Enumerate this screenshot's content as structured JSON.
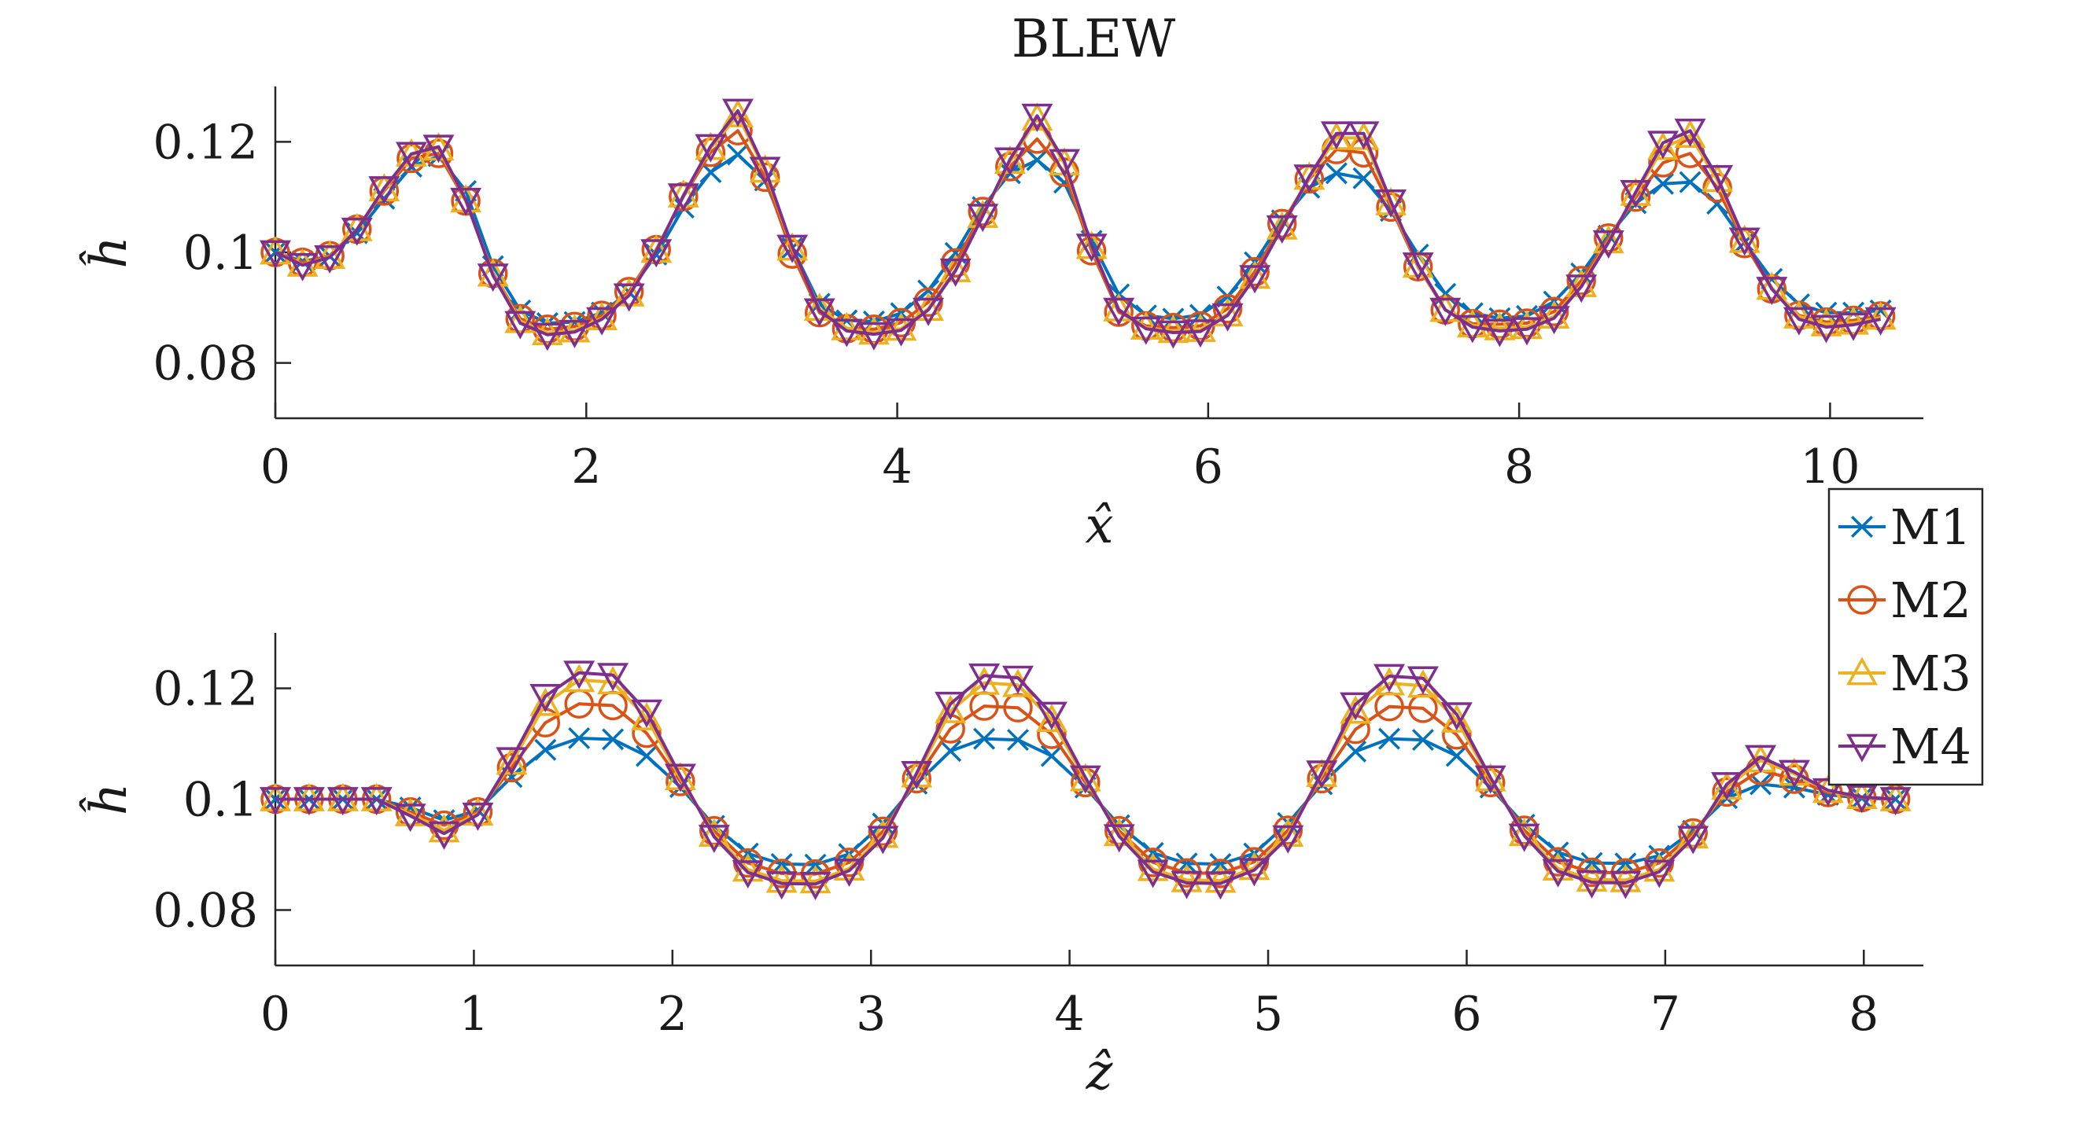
{
  "figure_title": "BLEW",
  "colors": {
    "M1": "#0072BD",
    "M2": "#D95319",
    "M3": "#EDB120",
    "M4": "#7E2F8E",
    "axis": "#262626",
    "background": "#ffffff"
  },
  "legend": {
    "placement": "right, between the two panels",
    "entries": [
      {
        "label": "M1",
        "marker": "x",
        "color": "#0072BD"
      },
      {
        "label": "M2",
        "marker": "circle",
        "color": "#D95319"
      },
      {
        "label": "M3",
        "marker": "triangle-up",
        "color": "#EDB120"
      },
      {
        "label": "M4",
        "marker": "triangle-down",
        "color": "#7E2F8E"
      }
    ]
  },
  "chart_data": [
    {
      "type": "line",
      "title": "BLEW",
      "xlabel": "x̂",
      "ylabel": "ĥ",
      "xlim": [
        0,
        10.6
      ],
      "ylim": [
        0.07,
        0.13
      ],
      "xticks": [
        0,
        2,
        4,
        6,
        8,
        10
      ],
      "yticks": [
        0.08,
        0.1,
        0.12
      ],
      "ytick_labels": [
        "0.08",
        "0.1",
        "0.12"
      ],
      "grid": false,
      "x": [
        0,
        0.175,
        0.35,
        0.525,
        0.7,
        0.875,
        1.05,
        1.225,
        1.4,
        1.575,
        1.75,
        1.925,
        2.1,
        2.275,
        2.45,
        2.625,
        2.8,
        2.975,
        3.15,
        3.325,
        3.5,
        3.675,
        3.85,
        4.025,
        4.2,
        4.375,
        4.55,
        4.725,
        4.9,
        5.075,
        5.25,
        5.425,
        5.6,
        5.775,
        5.95,
        6.125,
        6.3,
        6.475,
        6.65,
        6.825,
        7,
        7.175,
        7.35,
        7.525,
        7.7,
        7.875,
        8.05,
        8.225,
        8.4,
        8.575,
        8.75,
        8.925,
        9.1,
        9.275,
        9.45,
        9.625,
        9.8,
        9.975,
        10.15,
        10.325
      ],
      "series": [
        {
          "name": "M1",
          "marker": "x",
          "values": [
            0.1,
            0.0984,
            0.0993,
            0.1035,
            0.1097,
            0.1155,
            0.1174,
            0.1111,
            0.0975,
            0.0895,
            0.0872,
            0.0874,
            0.0891,
            0.0928,
            0.0996,
            0.1081,
            0.1145,
            0.1177,
            0.113,
            0.1008,
            0.0907,
            0.0877,
            0.0875,
            0.089,
            0.0931,
            0.0999,
            0.1082,
            0.1143,
            0.1167,
            0.1126,
            0.1021,
            0.0924,
            0.0886,
            0.088,
            0.0887,
            0.092,
            0.0982,
            0.1058,
            0.1117,
            0.1143,
            0.1134,
            0.1075,
            0.0996,
            0.0925,
            0.089,
            0.0881,
            0.0885,
            0.0911,
            0.0962,
            0.103,
            0.1089,
            0.1124,
            0.1127,
            0.1088,
            0.1018,
            0.0952,
            0.0906,
            0.0891,
            0.0891,
            0.0895
          ]
        },
        {
          "name": "M2",
          "marker": "circle",
          "values": [
            0.1,
            0.0982,
            0.0994,
            0.1042,
            0.1111,
            0.117,
            0.1179,
            0.1093,
            0.0962,
            0.088,
            0.0861,
            0.0866,
            0.0886,
            0.0929,
            0.1005,
            0.1101,
            0.1181,
            0.122,
            0.1136,
            0.0997,
            0.0891,
            0.0862,
            0.0861,
            0.0873,
            0.091,
            0.0981,
            0.1074,
            0.1155,
            0.1205,
            0.1145,
            0.1003,
            0.0892,
            0.0867,
            0.0864,
            0.0867,
            0.0898,
            0.0965,
            0.1052,
            0.1133,
            0.1186,
            0.118,
            0.1082,
            0.0974,
            0.0896,
            0.0871,
            0.087,
            0.0872,
            0.0893,
            0.0949,
            0.1026,
            0.11,
            0.1162,
            0.1179,
            0.1117,
            0.1016,
            0.0934,
            0.0886,
            0.0874,
            0.0877,
            0.0885
          ]
        },
        {
          "name": "M3",
          "marker": "triangle-up",
          "values": [
            0.1,
            0.0978,
            0.0992,
            0.1042,
            0.1114,
            0.1177,
            0.1188,
            0.1094,
            0.096,
            0.0876,
            0.0854,
            0.0859,
            0.0881,
            0.0924,
            0.1003,
            0.1103,
            0.1189,
            0.1248,
            0.1148,
            0.1007,
            0.0898,
            0.0863,
            0.0855,
            0.0862,
            0.0898,
            0.0968,
            0.1066,
            0.1164,
            0.1242,
            0.1161,
            0.101,
            0.0897,
            0.0864,
            0.0858,
            0.086,
            0.0888,
            0.0956,
            0.1045,
            0.1135,
            0.1207,
            0.1207,
            0.1089,
            0.0976,
            0.0896,
            0.0868,
            0.0863,
            0.0865,
            0.0884,
            0.0941,
            0.102,
            0.1106,
            0.1189,
            0.1211,
            0.1131,
            0.1021,
            0.0936,
            0.0884,
            0.087,
            0.0873,
            0.0882
          ]
        },
        {
          "name": "M4",
          "marker": "triangle-down",
          "values": [
            0.1,
            0.0977,
            0.0991,
            0.1041,
            0.1116,
            0.1178,
            0.1191,
            0.1095,
            0.0958,
            0.0872,
            0.0851,
            0.0856,
            0.0879,
            0.0922,
            0.1002,
            0.1103,
            0.1192,
            0.1256,
            0.1151,
            0.101,
            0.0895,
            0.0858,
            0.0852,
            0.0859,
            0.0896,
            0.0967,
            0.1066,
            0.1168,
            0.1247,
            0.1165,
            0.1012,
            0.0896,
            0.0862,
            0.0855,
            0.0857,
            0.0886,
            0.0955,
            0.1045,
            0.1137,
            0.1215,
            0.1215,
            0.1092,
            0.0978,
            0.0896,
            0.0865,
            0.0858,
            0.0861,
            0.0881,
            0.0938,
            0.1018,
            0.1109,
            0.1198,
            0.122,
            0.1136,
            0.1023,
            0.0934,
            0.0879,
            0.0865,
            0.0869,
            0.0879
          ]
        }
      ]
    },
    {
      "type": "line",
      "xlabel": "ẑ",
      "ylabel": "ĥ",
      "xlim": [
        0,
        8.3
      ],
      "ylim": [
        0.07,
        0.13
      ],
      "xticks": [
        0,
        1,
        2,
        3,
        4,
        5,
        6,
        7,
        8
      ],
      "yticks": [
        0.08,
        0.1,
        0.12
      ],
      "ytick_labels": [
        "0.08",
        "0.1",
        "0.12"
      ],
      "grid": false,
      "x": [
        0,
        0.17,
        0.34,
        0.51,
        0.68,
        0.85,
        1.02,
        1.19,
        1.36,
        1.53,
        1.7,
        1.87,
        2.04,
        2.21,
        2.38,
        2.55,
        2.72,
        2.89,
        3.06,
        3.23,
        3.4,
        3.57,
        3.74,
        3.91,
        4.08,
        4.25,
        4.42,
        4.59,
        4.76,
        4.93,
        5.1,
        5.27,
        5.44,
        5.61,
        5.78,
        5.95,
        6.12,
        6.29,
        6.46,
        6.63,
        6.8,
        6.97,
        7.14,
        7.31,
        7.48,
        7.65,
        7.82,
        7.99,
        8.16
      ],
      "series": [
        {
          "name": "M1",
          "marker": "x",
          "values": [
            0.1,
            0.1,
            0.1,
            0.1,
            0.0985,
            0.0962,
            0.098,
            0.104,
            0.1089,
            0.111,
            0.1108,
            0.1078,
            0.1022,
            0.0952,
            0.0902,
            0.0883,
            0.0882,
            0.0901,
            0.0956,
            0.1028,
            0.1087,
            0.1109,
            0.1107,
            0.1078,
            0.1021,
            0.0953,
            0.0903,
            0.0884,
            0.0883,
            0.0902,
            0.0957,
            0.1027,
            0.1086,
            0.1109,
            0.1107,
            0.1078,
            0.1021,
            0.0954,
            0.0904,
            0.0885,
            0.0884,
            0.0898,
            0.0943,
            0.1002,
            0.1027,
            0.1021,
            0.1008,
            0.1002,
            0.1
          ]
        },
        {
          "name": "M2",
          "marker": "circle",
          "values": [
            0.1,
            0.1,
            0.1,
            0.1,
            0.0977,
            0.0953,
            0.0977,
            0.1057,
            0.1138,
            0.1172,
            0.1169,
            0.1119,
            0.1032,
            0.0943,
            0.0885,
            0.0866,
            0.0865,
            0.0886,
            0.0942,
            0.1037,
            0.1127,
            0.1168,
            0.1165,
            0.1117,
            0.103,
            0.0943,
            0.0886,
            0.0867,
            0.0866,
            0.0887,
            0.0944,
            0.1037,
            0.1126,
            0.1167,
            0.1164,
            0.1116,
            0.103,
            0.0944,
            0.0887,
            0.0868,
            0.0867,
            0.0885,
            0.0939,
            0.1013,
            0.1052,
            0.1036,
            0.1012,
            0.1003,
            0.1
          ]
        },
        {
          "name": "M3",
          "marker": "triangle-up",
          "values": [
            0.1,
            0.1,
            0.1,
            0.1,
            0.0973,
            0.0944,
            0.0974,
            0.1066,
            0.1172,
            0.1215,
            0.1211,
            0.1146,
            0.1038,
            0.0936,
            0.0873,
            0.0853,
            0.0852,
            0.0875,
            0.0934,
            0.1043,
            0.1159,
            0.121,
            0.1206,
            0.1143,
            0.1036,
            0.0937,
            0.0874,
            0.0854,
            0.0853,
            0.0876,
            0.0936,
            0.1044,
            0.1158,
            0.1209,
            0.1205,
            0.1142,
            0.1036,
            0.0937,
            0.0875,
            0.0855,
            0.0854,
            0.0873,
            0.0933,
            0.1021,
            0.107,
            0.1046,
            0.1015,
            0.1004,
            0.1
          ]
        },
        {
          "name": "M4",
          "marker": "triangle-down",
          "values": [
            0.1,
            0.1,
            0.1,
            0.1,
            0.097,
            0.0938,
            0.0972,
            0.1072,
            0.1186,
            0.1228,
            0.1224,
            0.1158,
            0.1042,
            0.0932,
            0.0868,
            0.0848,
            0.0847,
            0.0871,
            0.093,
            0.1047,
            0.1172,
            0.1223,
            0.1219,
            0.1154,
            0.1039,
            0.0933,
            0.0869,
            0.0849,
            0.0848,
            0.0872,
            0.0931,
            0.1048,
            0.1171,
            0.1222,
            0.1218,
            0.1153,
            0.1039,
            0.0934,
            0.087,
            0.085,
            0.0849,
            0.0869,
            0.093,
            0.1027,
            0.1076,
            0.1049,
            0.1016,
            0.1004,
            0.1
          ]
        }
      ]
    }
  ]
}
